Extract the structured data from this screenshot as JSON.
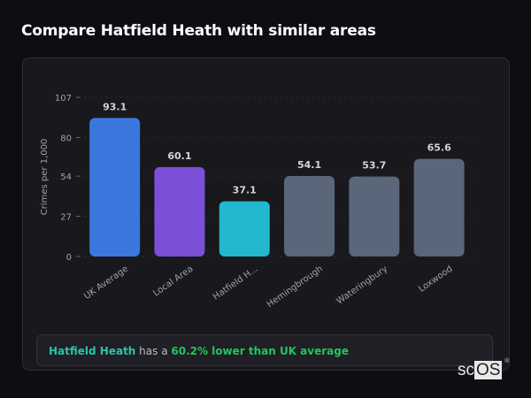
{
  "title": "Compare Hatfield Heath with similar areas",
  "chart_data": {
    "type": "bar",
    "title": "",
    "xlabel": "",
    "ylabel": "Crimes per 1,000",
    "ylim": [
      0,
      107
    ],
    "yticks": [
      0,
      27,
      54,
      80,
      107
    ],
    "categories": [
      "UK Average",
      "Local Area",
      "Hatfield H...",
      "Hemingbrough",
      "Wateringbury",
      "Loxwood"
    ],
    "values": [
      93.1,
      60.1,
      37.1,
      54.1,
      53.7,
      65.6
    ],
    "value_labels": [
      "93.1",
      "60.1",
      "37.1",
      "54.1",
      "53.7",
      "65.6"
    ],
    "colors": [
      "#3a78e0",
      "#7b4fd6",
      "#22b8d0",
      "#5a6679",
      "#5a6679",
      "#5a6679"
    ],
    "grid": true
  },
  "summary": {
    "area": "Hatfield Heath",
    "middle": " has a ",
    "comparison": "60.2% lower than UK average"
  },
  "logo": {
    "text_a": "sc",
    "text_b": "OS",
    "mark": "®"
  }
}
